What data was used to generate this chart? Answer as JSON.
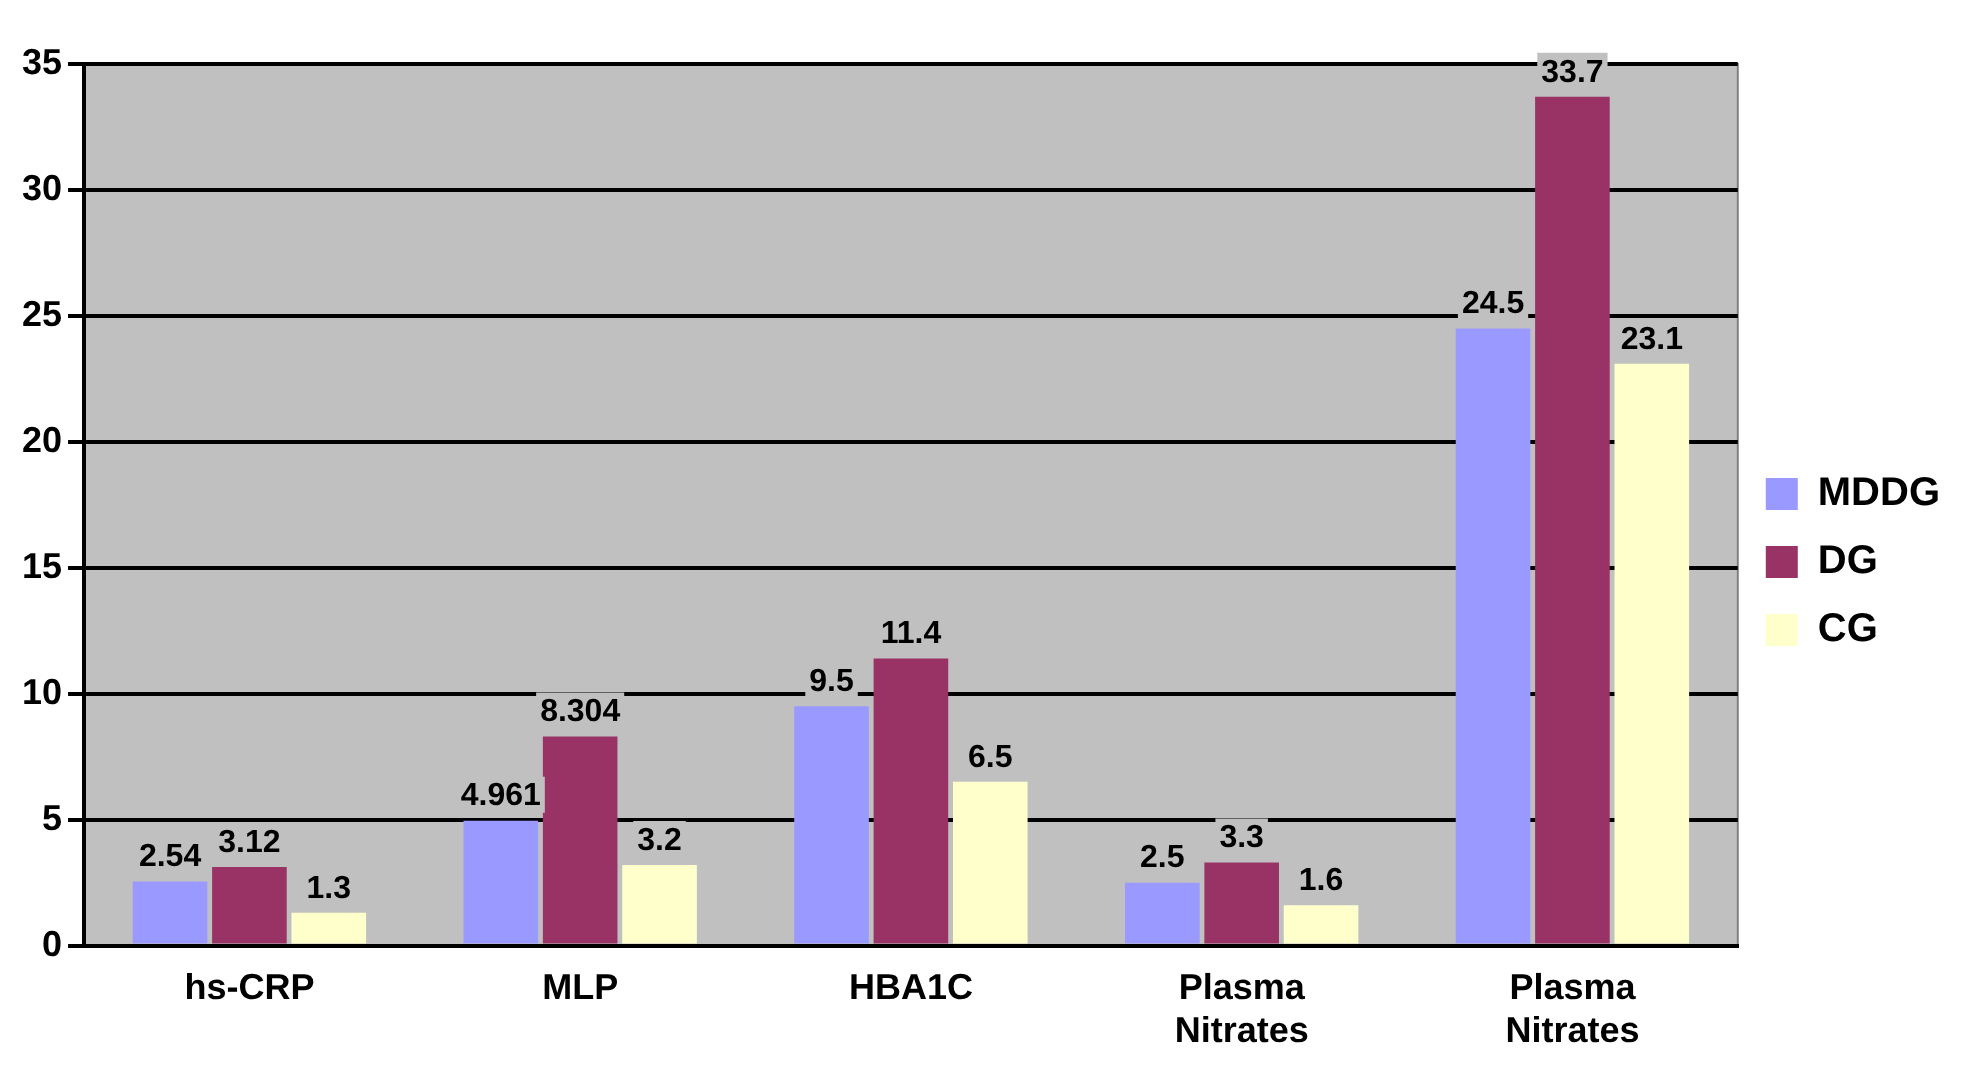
{
  "chart_data": {
    "type": "bar",
    "categories": [
      "hs-CRP",
      "MLP",
      "HBA1C",
      "Plasma Nitrates",
      "Plasma Nitrates"
    ],
    "series": [
      {
        "name": "MDDG",
        "color": "#9999ff",
        "values": [
          2.54,
          4.961,
          9.5,
          2.5,
          24.5
        ]
      },
      {
        "name": "DG",
        "color": "#993366",
        "values": [
          3.12,
          8.304,
          11.4,
          3.3,
          33.7
        ]
      },
      {
        "name": "CG",
        "color": "#ffffcc",
        "values": [
          1.3,
          3.2,
          6.5,
          1.6,
          23.1
        ]
      }
    ],
    "ylim": [
      0,
      35
    ],
    "yticks": [
      0,
      5,
      10,
      15,
      20,
      25,
      30,
      35
    ],
    "grid": "y",
    "legend": "right",
    "data_labels": true
  }
}
